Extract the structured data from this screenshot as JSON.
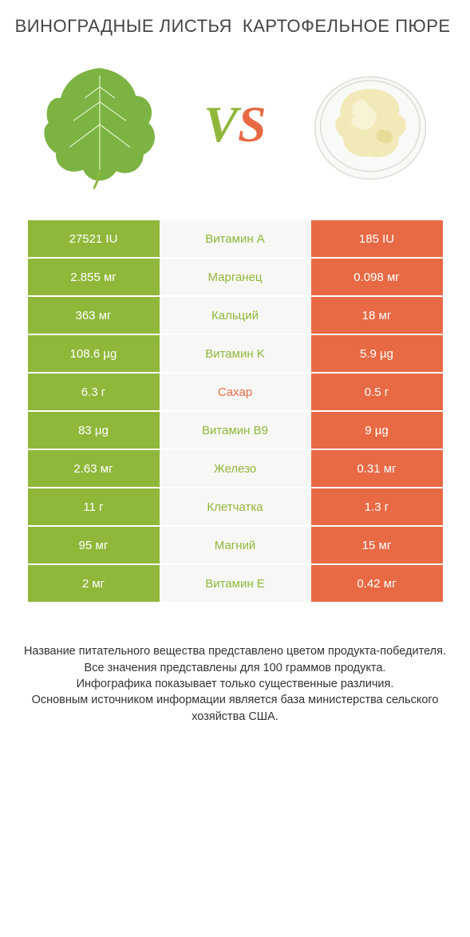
{
  "header": {
    "left_title": "ВИНОГРАДНЫЕ ЛИСТЬЯ",
    "right_title": "КАРТОФЕЛЬНОЕ ПЮРЕ"
  },
  "vs": {
    "v": "V",
    "s": "S"
  },
  "colors": {
    "left": "#8fb83a",
    "right": "#e86a45",
    "mid_bg": "#f7f7f5",
    "row_border": "#ffffff"
  },
  "typography": {
    "title_fontsize": 22,
    "vs_fontsize": 64,
    "cell_fontsize": 15,
    "footer_fontsize": 14.5
  },
  "rows": [
    {
      "left": "27521 IU",
      "mid": "Витамин A",
      "mid_color": "#8fb83a",
      "right": "185 IU"
    },
    {
      "left": "2.855 мг",
      "mid": "Марганец",
      "mid_color": "#8fb83a",
      "right": "0.098 мг"
    },
    {
      "left": "363 мг",
      "mid": "Кальций",
      "mid_color": "#8fb83a",
      "right": "18 мг"
    },
    {
      "left": "108.6 µg",
      "mid": "Витамин K",
      "mid_color": "#8fb83a",
      "right": "5.9 µg"
    },
    {
      "left": "6.3 г",
      "mid": "Сахар",
      "mid_color": "#e86a45",
      "right": "0.5 г"
    },
    {
      "left": "83 µg",
      "mid": "Витамин B9",
      "mid_color": "#8fb83a",
      "right": "9 µg"
    },
    {
      "left": "2.63 мг",
      "mid": "Железо",
      "mid_color": "#8fb83a",
      "right": "0.31 мг"
    },
    {
      "left": "11 г",
      "mid": "Клетчатка",
      "mid_color": "#8fb83a",
      "right": "1.3 г"
    },
    {
      "left": "95 мг",
      "mid": "Магний",
      "mid_color": "#8fb83a",
      "right": "15 мг"
    },
    {
      "left": "2 мг",
      "mid": "Витамин E",
      "mid_color": "#8fb83a",
      "right": "0.42 мг"
    }
  ],
  "footer": {
    "line1": "Название питательного вещества представлено цветом продукта-победителя.",
    "line2": "Все значения представлены для 100 граммов продукта.",
    "line3": "Инфографика показывает только существенные различия.",
    "line4": "Основным источником информации является база министерства сельского хозяйства США."
  }
}
